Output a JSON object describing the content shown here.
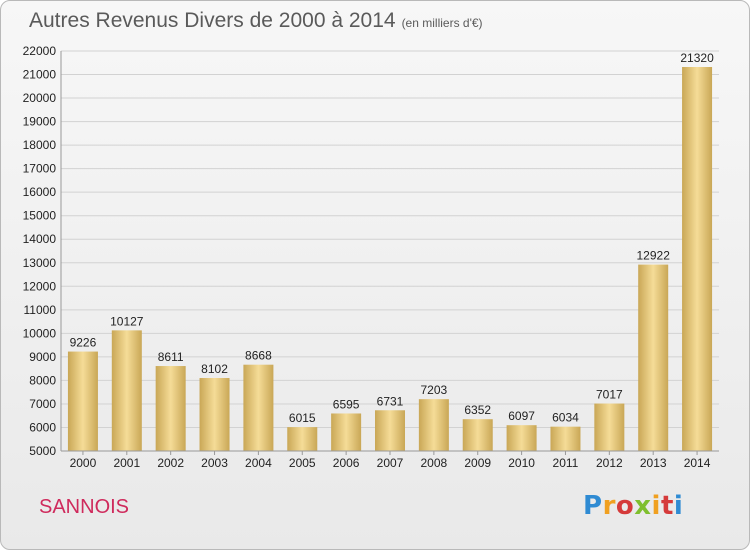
{
  "title": "Autres Revenus Divers de 2000 à 2014",
  "subtitle": "(en milliers d'€)",
  "commune": "SANNOIS",
  "brand": "Proxiti",
  "colors": {
    "bar_top": "#f5dc97",
    "bar_bottom": "#c9a756",
    "grid": "#d2d2d2",
    "title": "#5a5a5a",
    "commune": "#cf2a5c"
  },
  "chart_data": {
    "type": "bar",
    "categories": [
      "2000",
      "2001",
      "2002",
      "2003",
      "2004",
      "2005",
      "2006",
      "2007",
      "2008",
      "2009",
      "2010",
      "2011",
      "2012",
      "2013",
      "2014"
    ],
    "values": [
      9226,
      10127,
      8611,
      8102,
      8668,
      6015,
      6595,
      6731,
      7203,
      6352,
      6097,
      6034,
      7017,
      12922,
      21320
    ],
    "ylim": [
      5000,
      22000
    ],
    "yticks": [
      5000,
      6000,
      7000,
      8000,
      9000,
      10000,
      11000,
      12000,
      13000,
      14000,
      15000,
      16000,
      17000,
      18000,
      19000,
      20000,
      21000,
      22000
    ],
    "grid": true,
    "xlabel": "",
    "ylabel": ""
  }
}
